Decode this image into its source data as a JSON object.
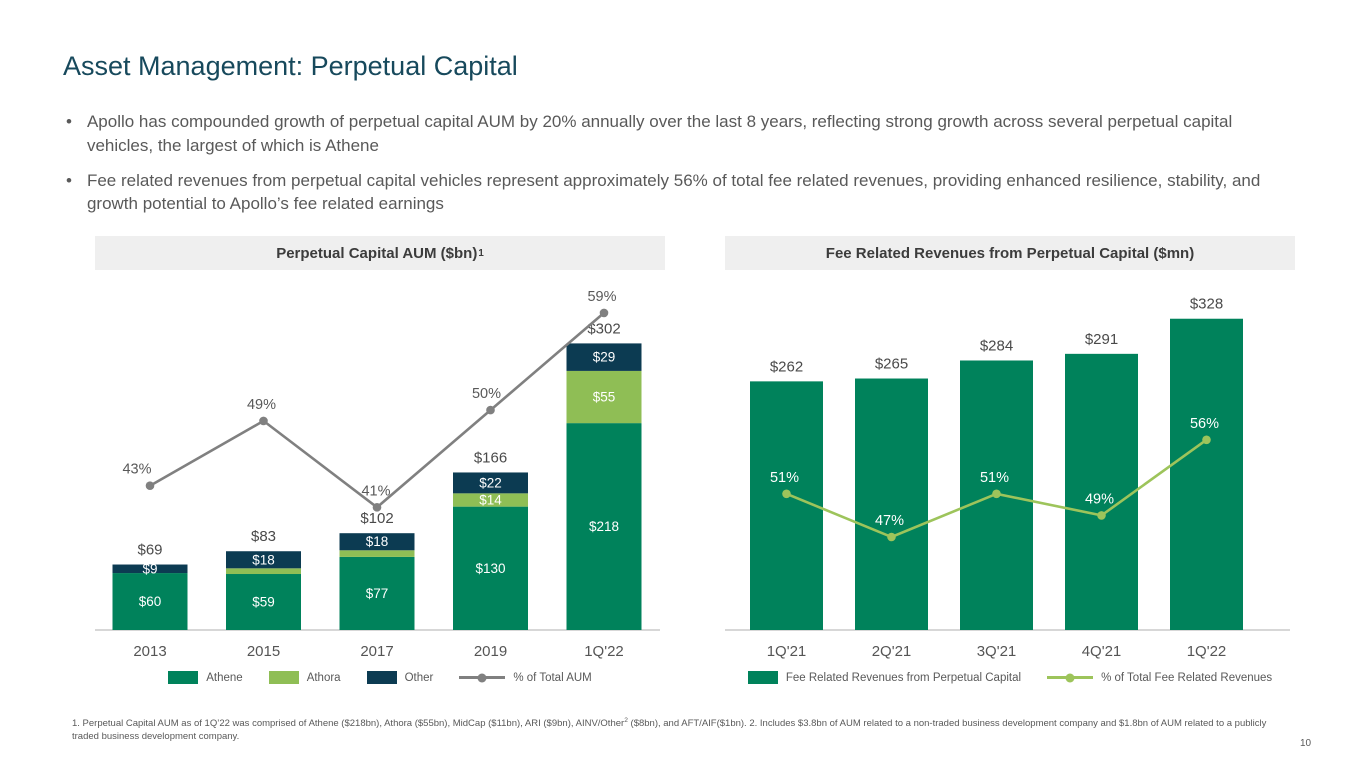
{
  "slide": {
    "title": "Asset Management: Perpetual Capital",
    "bullets": [
      "Apollo has compounded growth of perpetual capital AUM by 20% annually over the last 8 years, reflecting strong growth across several perpetual capital vehicles, the largest of which is Athene",
      "Fee related revenues from perpetual capital vehicles represent approximately 56% of total fee related revenues, providing enhanced resilience, stability, and growth potential to Apollo’s fee related earnings"
    ],
    "footnote": {
      "part1": "1. Perpetual Capital AUM as of 1Q’22 was comprised of Athene ($218bn), Athora ($55bn), MidCap ($11bn), ARI ($9bn), AINV/Other",
      "sup": "2",
      "part2": " ($8bn), and AFT/AIF($1bn). 2. Includes $3.8bn of AUM related to a non-traded business development company and $1.8bn of AUM related to a publicly traded business development company."
    },
    "page_number": "10"
  },
  "colors": {
    "title_teal": "#17495C",
    "athene_green": "#00825B",
    "athora_light_green": "#8FBE55",
    "other_navy": "#0C3B52",
    "gray_line": "#808080",
    "green_line": "#9DC45B",
    "header_bg": "#EFEFEF",
    "label_gray": "#4A4A4A"
  },
  "chart_data": [
    {
      "type": "bar",
      "combo": "stacked-bar-with-line",
      "title": "Perpetual Capital AUM ($bn)",
      "title_superscript": "1",
      "categories": [
        "2013",
        "2015",
        "2017",
        "2019",
        "1Q'22"
      ],
      "inside_labels": true,
      "series": [
        {
          "name": "Athene",
          "color": "#00825B",
          "values": [
            60,
            59,
            77,
            130,
            218
          ],
          "labels": [
            "$60",
            "$59",
            "$77",
            "$130",
            "$218"
          ]
        },
        {
          "name": "Athora",
          "color": "#8FBE55",
          "values": [
            0,
            6,
            7,
            14,
            55
          ],
          "labels": [
            "",
            "",
            "",
            "$14",
            "$55"
          ]
        },
        {
          "name": "Other",
          "color": "#0C3B52",
          "values": [
            9,
            18,
            18,
            22,
            29
          ],
          "labels": [
            "$9",
            "$18",
            "$18",
            "$22",
            "$29"
          ]
        }
      ],
      "totals": [
        "$69",
        "$83",
        "$102",
        "$166",
        "$302"
      ],
      "line": {
        "name": "% of Total AUM",
        "color": "#808080",
        "values": [
          43,
          49,
          41,
          50,
          59
        ],
        "labels": [
          "43%",
          "49%",
          "41%",
          "50%",
          "59%"
        ],
        "label_color": "#595959"
      },
      "legend_position": "bottom",
      "grid": false
    },
    {
      "type": "bar",
      "combo": "bar-with-line",
      "title": "Fee Related Revenues from Perpetual Capital ($mn)",
      "categories": [
        "1Q'21",
        "2Q'21",
        "3Q'21",
        "4Q'21",
        "1Q'22"
      ],
      "inside_labels": false,
      "series": [
        {
          "name": "Fee Related Revenues from Perpetual Capital",
          "color": "#00825B",
          "values": [
            262,
            265,
            284,
            291,
            328
          ],
          "labels": [
            "$262",
            "$265",
            "$284",
            "$291",
            "$328"
          ]
        }
      ],
      "line": {
        "name": "% of Total Fee Related Revenues",
        "color": "#9DC45B",
        "values": [
          51,
          47,
          51,
          49,
          56
        ],
        "labels": [
          "51%",
          "47%",
          "51%",
          "49%",
          "56%"
        ],
        "label_color": "#FFFFFF"
      },
      "legend_position": "bottom",
      "grid": false
    }
  ]
}
